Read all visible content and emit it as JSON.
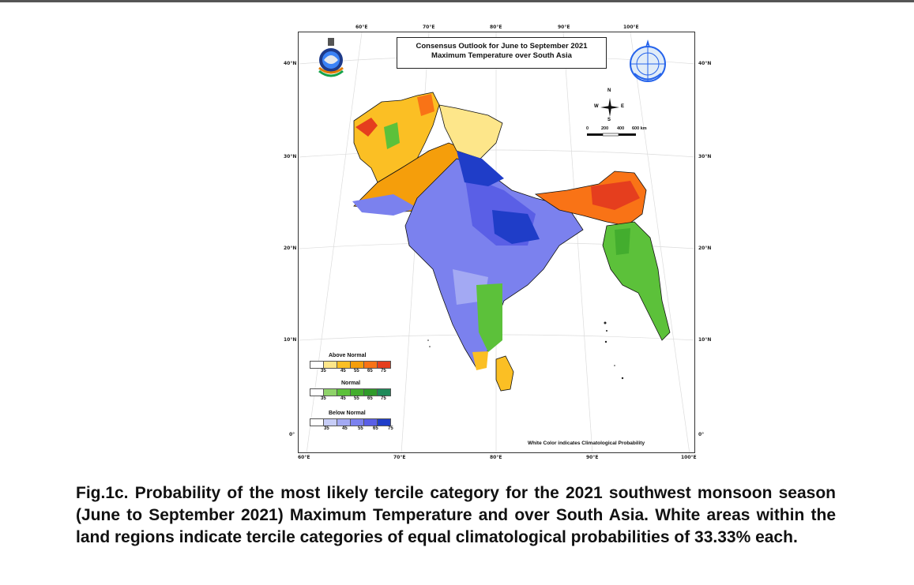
{
  "map": {
    "title_line1": "Consensus Outlook for June to September 2021",
    "title_line2": "Maximum Temperature over South Asia",
    "longitude_labels": [
      "60°E",
      "70°E",
      "80°E",
      "90°E",
      "100°E"
    ],
    "latitude_labels": [
      "40°N",
      "30°N",
      "20°N",
      "10°N",
      "0°"
    ],
    "compass": {
      "n": "N",
      "s": "S",
      "e": "E",
      "w": "W"
    },
    "scale_bar": {
      "labels": [
        "0",
        "200",
        "400",
        "600 km"
      ]
    },
    "note": "White Color indicates Climatological Probability",
    "colors": {
      "above": [
        "#ffffff",
        "#fde68a",
        "#fbbf24",
        "#f59e0b",
        "#f97316",
        "#e53e1e"
      ],
      "normal": [
        "#ffffff",
        "#8fd36a",
        "#5cc13a",
        "#43ad2e",
        "#2f9a2a",
        "#1e8a5a"
      ],
      "below": [
        "#ffffff",
        "#c7cdf7",
        "#a3a9f3",
        "#7b81ee",
        "#5a5fe6",
        "#1f3dc8"
      ]
    }
  },
  "legend": {
    "above_title": "Above Normal",
    "normal_title": "Normal",
    "below_title": "Below Normal",
    "ticks": [
      "35",
      "45",
      "55",
      "65",
      "75"
    ]
  },
  "caption": "Fig.1c. Probability of the most likely tercile category for the 2021 southwest monsoon season (June to September 2021) Maximum Temperature and over South Asia. White areas within the land regions indicate tercile categories of equal climatological probabilities of 33.33% each."
}
